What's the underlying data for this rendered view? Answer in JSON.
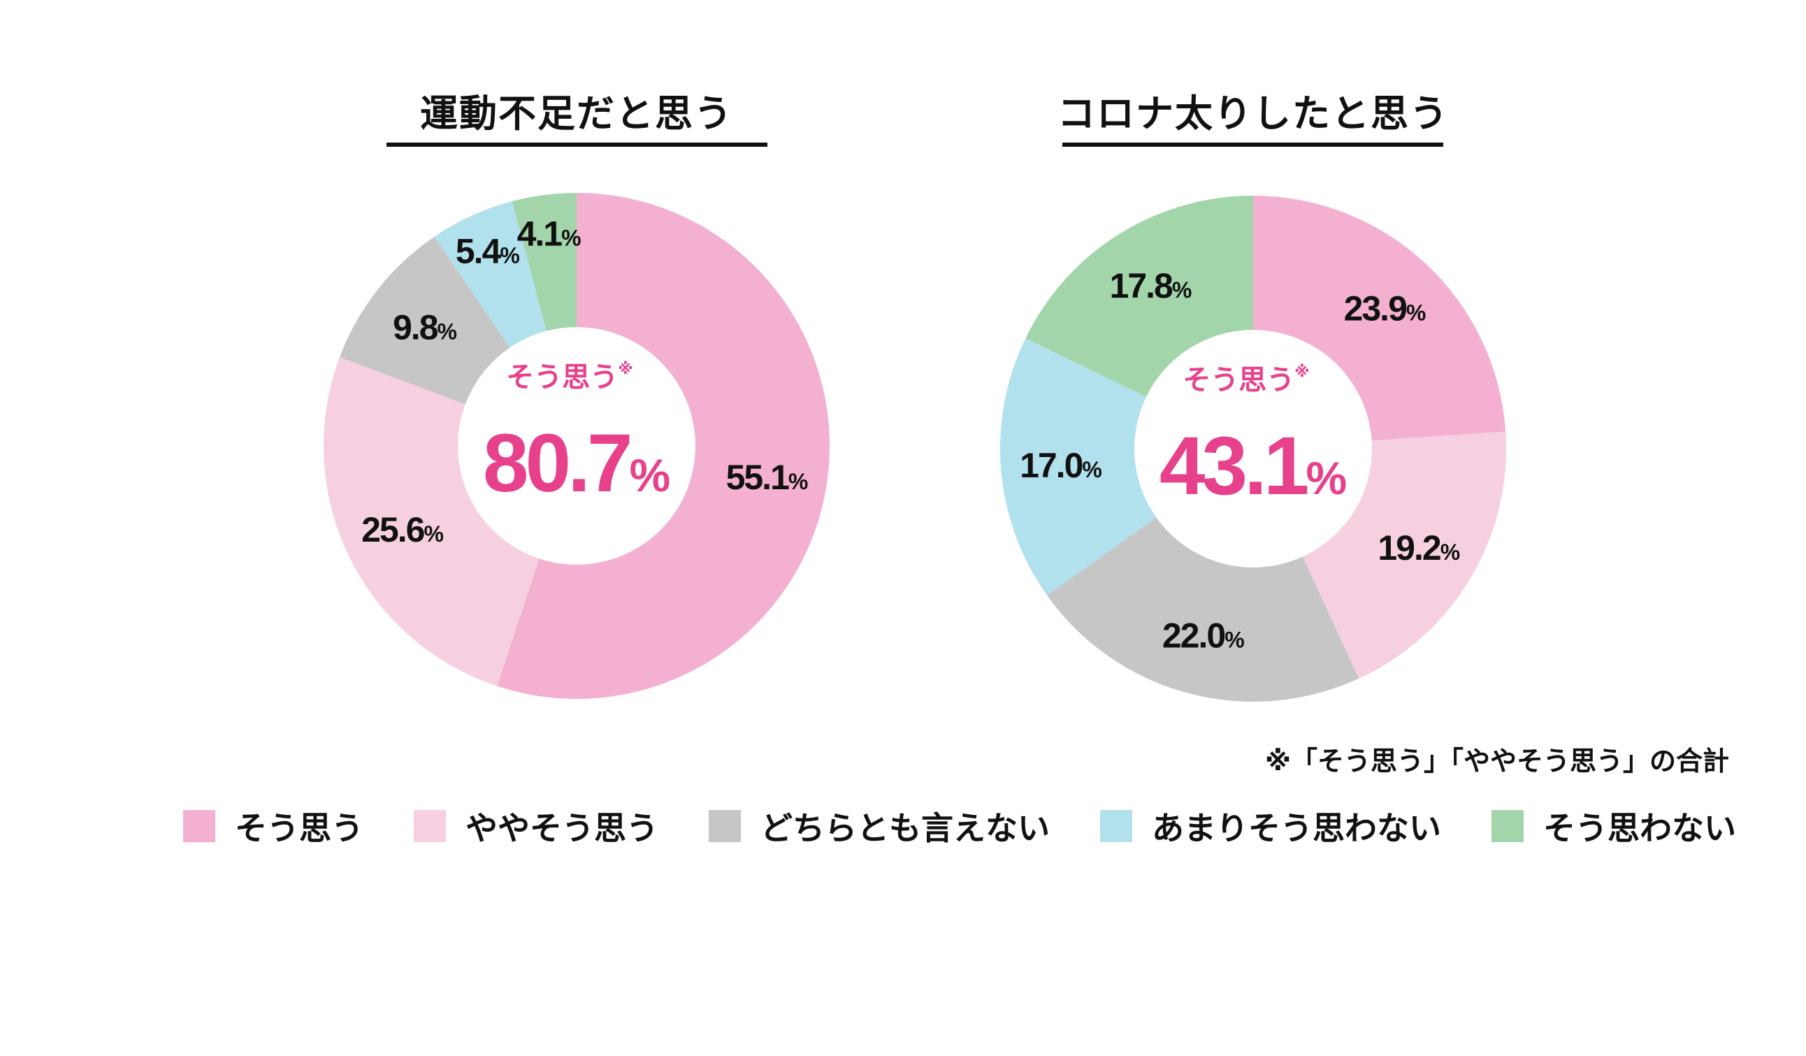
{
  "chart_data": [
    {
      "type": "pie",
      "title": "運動不足だと思う",
      "center_label": "そう思う",
      "center_mark": "※",
      "center_value": "80.7",
      "center_unit": "%",
      "categories": [
        "そう思う",
        "ややそう思う",
        "どちらとも言えない",
        "あまりそう思わない",
        "そう思わない"
      ],
      "values": [
        55.1,
        25.6,
        9.8,
        5.4,
        4.1
      ],
      "unit": "%"
    },
    {
      "type": "pie",
      "title": "コロナ太りしたと思う",
      "center_label": "そう思う",
      "center_mark": "※",
      "center_value": "43.1",
      "center_unit": "%",
      "categories": [
        "そう思う",
        "ややそう思う",
        "どちらとも言えない",
        "あまりそう思わない",
        "そう思わない"
      ],
      "values": [
        23.9,
        19.2,
        22.0,
        17.0,
        17.8
      ],
      "unit": "%"
    }
  ],
  "colors": [
    "#f4b0d0",
    "#f6d0e1",
    "#c6c6c6",
    "#b2e1ee",
    "#a3d5aa"
  ],
  "accent_color": "#e8418c",
  "legend": [
    "そう思う",
    "ややそう思う",
    "どちらとも言えない",
    "あまりそう思わない",
    "そう思わない"
  ],
  "note": "※「そう思う」「ややそう思う」の合計"
}
